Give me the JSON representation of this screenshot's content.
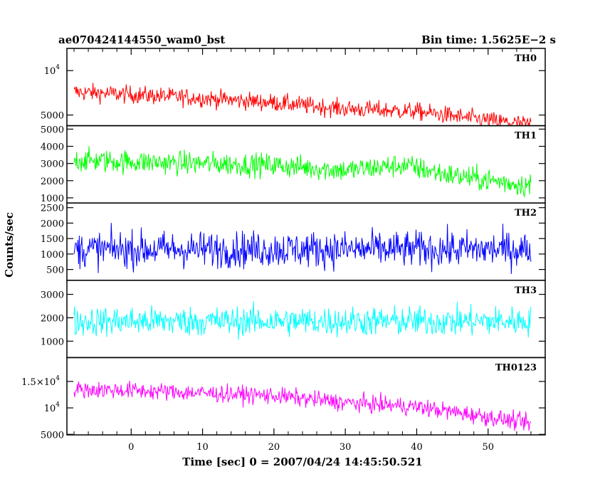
{
  "header": {
    "left_title": "ae070424144550_wam0_bst",
    "right_title": "Bin time: 1.5625E−2 s"
  },
  "chart_data": {
    "type": "line",
    "xlabel": "Time [sec] 0 = 2007/04/24 14:45:50.521",
    "ylabel": "Counts/sec",
    "xlim": [
      -9,
      58
    ],
    "x_ticks": [
      0,
      10,
      20,
      30,
      40,
      50
    ],
    "x_tick_labels": [
      "0",
      "10",
      "20",
      "30",
      "40",
      "50"
    ],
    "x_data_range": [
      -8,
      56
    ],
    "panels": [
      {
        "name": "TH0",
        "color": "#ff0000",
        "ylim": [
          3800,
          12500
        ],
        "yticks": [
          {
            "value": 10000,
            "label": "10",
            "sup": "4"
          },
          {
            "value": 5000,
            "label": "5000",
            "sup": ""
          }
        ],
        "trend": [
          [
            -8,
            7600
          ],
          [
            0,
            7300
          ],
          [
            10,
            6900
          ],
          [
            20,
            6400
          ],
          [
            30,
            5700
          ],
          [
            40,
            5400
          ],
          [
            50,
            4400
          ],
          [
            56,
            3900
          ]
        ],
        "noise": 1100,
        "series": [
          {
            "name": "TH0",
            "x": [
              -8,
              0,
              10,
              20,
              30,
              40,
              50,
              56
            ],
            "y": [
              7600,
              7300,
              6900,
              6400,
              5700,
              5400,
              4400,
              3900
            ]
          }
        ]
      },
      {
        "name": "TH1",
        "color": "#00ff00",
        "ylim": [
          700,
          5200
        ],
        "yticks": [
          {
            "value": 1000,
            "label": "1000",
            "sup": ""
          },
          {
            "value": 2000,
            "label": "2000",
            "sup": ""
          },
          {
            "value": 3000,
            "label": "3000",
            "sup": ""
          },
          {
            "value": 4000,
            "label": "4000",
            "sup": ""
          },
          {
            "value": 5000,
            "label": "5000",
            "sup": ""
          }
        ],
        "trend": [
          [
            -8,
            3200
          ],
          [
            0,
            3100
          ],
          [
            10,
            3000
          ],
          [
            20,
            2900
          ],
          [
            30,
            2600
          ],
          [
            38,
            2900
          ],
          [
            45,
            2300
          ],
          [
            56,
            1700
          ]
        ],
        "noise": 750,
        "series": [
          {
            "name": "TH1",
            "x": [
              -8,
              0,
              10,
              20,
              30,
              38,
              45,
              56
            ],
            "y": [
              3200,
              3100,
              3000,
              2900,
              2600,
              2900,
              2300,
              1700
            ]
          }
        ]
      },
      {
        "name": "TH2",
        "color": "#0000ff",
        "ylim": [
          150,
          2650
        ],
        "yticks": [
          {
            "value": 500,
            "label": "500",
            "sup": ""
          },
          {
            "value": 1000,
            "label": "1000",
            "sup": ""
          },
          {
            "value": 1500,
            "label": "1500",
            "sup": ""
          },
          {
            "value": 2000,
            "label": "2000",
            "sup": ""
          },
          {
            "value": 2500,
            "label": "2500",
            "sup": ""
          }
        ],
        "trend": [
          [
            -8,
            1150
          ],
          [
            56,
            1150
          ]
        ],
        "noise": 650,
        "series": [
          {
            "name": "TH2",
            "x": [
              -8,
              56
            ],
            "y": [
              1150,
              1150
            ]
          }
        ]
      },
      {
        "name": "TH3",
        "color": "#00ffff",
        "ylim": [
          300,
          3600
        ],
        "yticks": [
          {
            "value": 1000,
            "label": "1000",
            "sup": ""
          },
          {
            "value": 2000,
            "label": "2000",
            "sup": ""
          },
          {
            "value": 3000,
            "label": "3000",
            "sup": ""
          }
        ],
        "trend": [
          [
            -8,
            1850
          ],
          [
            56,
            1850
          ]
        ],
        "noise": 700,
        "series": [
          {
            "name": "TH3",
            "x": [
              -8,
              56
            ],
            "y": [
              1850,
              1850
            ]
          }
        ]
      },
      {
        "name": "TH0123",
        "color": "#ff00ff",
        "ylim": [
          4900,
          19500
        ],
        "yticks": [
          {
            "value": 5000,
            "label": "5000",
            "sup": ""
          },
          {
            "value": 10000,
            "label": "10",
            "sup": "4"
          },
          {
            "value": 15000,
            "label": "1.5×10",
            "sup": "4"
          }
        ],
        "trend": [
          [
            -8,
            13500
          ],
          [
            0,
            13300
          ],
          [
            10,
            12800
          ],
          [
            20,
            12300
          ],
          [
            30,
            11000
          ],
          [
            40,
            10200
          ],
          [
            50,
            8300
          ],
          [
            56,
            7000
          ]
        ],
        "noise": 1800,
        "series": [
          {
            "name": "TH0123",
            "x": [
              -8,
              0,
              10,
              20,
              30,
              40,
              50,
              56
            ],
            "y": [
              13500,
              13300,
              12800,
              12300,
              11000,
              10200,
              8300,
              7000
            ]
          }
        ]
      }
    ]
  }
}
